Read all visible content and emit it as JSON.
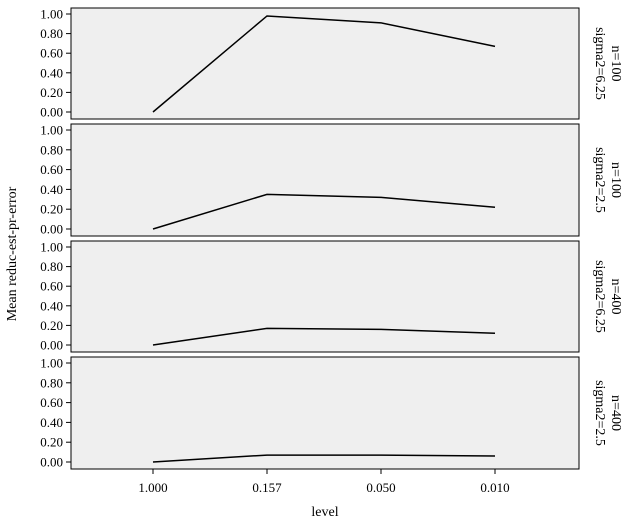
{
  "colors": {
    "panel_background": "#efefef",
    "line": "#000000",
    "page_background": "#ffffff"
  },
  "chart_data": {
    "type": "line",
    "title": "",
    "xlabel": "level",
    "ylabel": "Mean reduc-est-pr-error",
    "categories": [
      "1.000",
      "0.157",
      "0.050",
      "0.010"
    ],
    "ylim": [
      0,
      1
    ],
    "yticks": [
      "0.00",
      "0.20",
      "0.40",
      "0.60",
      "0.80",
      "1.00"
    ],
    "grid": false,
    "legend": "none",
    "panels": [
      {
        "strip": [
          "n=100",
          "sigma2=6.25"
        ],
        "values": [
          0.0,
          0.98,
          0.91,
          0.67
        ]
      },
      {
        "strip": [
          "n=100",
          "sigma2=2.5"
        ],
        "values": [
          0.0,
          0.35,
          0.32,
          0.22
        ]
      },
      {
        "strip": [
          "n=400",
          "sigma2=6.25"
        ],
        "values": [
          0.0,
          0.17,
          0.16,
          0.12
        ]
      },
      {
        "strip": [
          "n=400",
          "sigma2=2.5"
        ],
        "values": [
          0.0,
          0.07,
          0.07,
          0.06
        ]
      }
    ]
  }
}
